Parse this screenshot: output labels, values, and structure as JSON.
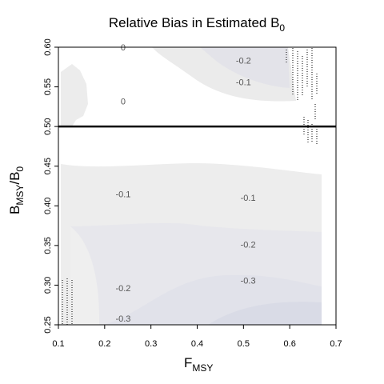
{
  "chart_data": {
    "type": "heatmap",
    "title": "Relative Bias in Estimated B",
    "title_sub": "0",
    "xlabel": "F",
    "xlabel_sub": "MSY",
    "ylabel_parts": {
      "b1": "B",
      "s1": "MSY",
      "mid": "/B",
      "s2": "0"
    },
    "xlim": [
      0.1,
      0.7
    ],
    "ylim": [
      0.25,
      0.6
    ],
    "x_ticks": [
      0.1,
      0.2,
      0.3,
      0.4,
      0.5,
      0.6,
      0.7
    ],
    "x_tick_labels": [
      "0.1",
      "0.2",
      "0.3",
      "0.4",
      "0.5",
      "0.6",
      "0.7"
    ],
    "y_ticks": [
      0.25,
      0.3,
      0.35,
      0.4,
      0.45,
      0.5,
      0.55,
      0.6
    ],
    "y_tick_labels": [
      "0.25",
      "0.30",
      "0.35",
      "0.40",
      "0.45",
      "0.50",
      "0.55",
      "0.60"
    ],
    "reference_line": {
      "y": 0.5
    },
    "grid": false,
    "colors": {
      "zero": "#ffffff",
      "minus_0_1": "#ececec",
      "minus_0_2": "#e4e4ea",
      "minus_0_3": "#d8dae6",
      "line": "#000000"
    },
    "contour_labels": [
      {
        "text": "0",
        "x": 0.24,
        "y": 0.6
      },
      {
        "text": "-0.2",
        "x": 0.5,
        "y": 0.583
      },
      {
        "text": "-0.1",
        "x": 0.5,
        "y": 0.556
      },
      {
        "text": "0",
        "x": 0.24,
        "y": 0.532
      },
      {
        "text": "-0.1",
        "x": 0.24,
        "y": 0.415
      },
      {
        "text": "-0.1",
        "x": 0.51,
        "y": 0.41
      },
      {
        "text": "-0.2",
        "x": 0.51,
        "y": 0.351
      },
      {
        "text": "-0.3",
        "x": 0.51,
        "y": 0.306
      },
      {
        "text": "-0.2",
        "x": 0.24,
        "y": 0.296
      },
      {
        "text": "-0.3",
        "x": 0.24,
        "y": 0.258
      }
    ]
  }
}
